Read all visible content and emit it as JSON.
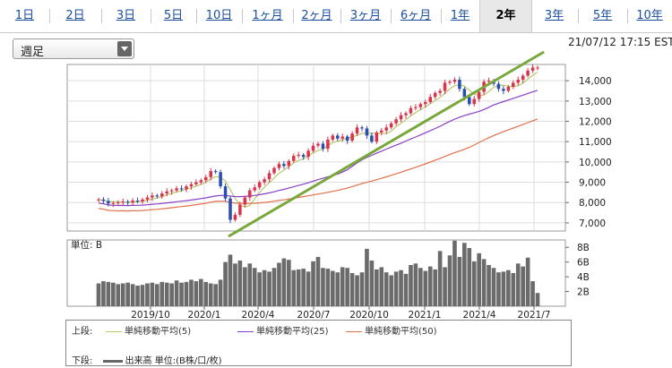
{
  "tabs": [
    {
      "label": "1日",
      "active": false
    },
    {
      "label": "2日",
      "active": false
    },
    {
      "label": "3日",
      "active": false
    },
    {
      "label": "5日",
      "active": false
    },
    {
      "label": "10日",
      "active": false
    },
    {
      "label": "1ヶ月",
      "active": false
    },
    {
      "label": "2ヶ月",
      "active": false
    },
    {
      "label": "3ヶ月",
      "active": false
    },
    {
      "label": "6ヶ月",
      "active": false
    },
    {
      "label": "1年",
      "active": false
    },
    {
      "label": "2年",
      "active": true
    },
    {
      "label": "3年",
      "active": false
    },
    {
      "label": "5年",
      "active": false
    },
    {
      "label": "10年",
      "active": false
    }
  ],
  "period_select": {
    "value": "週足"
  },
  "timestamp": "21/07/12 17:15 EST",
  "volume_panel": {
    "unit_label": "単位: B"
  },
  "legend": {
    "upper_label": "上段:",
    "lower_label": "下段:",
    "upper_items": [
      {
        "name": "単純移動平均(5)",
        "color": "#b5c96a"
      },
      {
        "name": "単純移動平均(25)",
        "color": "#8a3fc6"
      },
      {
        "name": "単純移動平均(50)",
        "color": "#e2704a"
      }
    ],
    "lower_item": {
      "name": "出来高 単位:(B株/口/枚)",
      "color": "#666666"
    }
  },
  "chart_data": {
    "type": "candlestick",
    "x_tick_labels": [
      "2019/10",
      "2020/1",
      "2020/4",
      "2020/7",
      "2020/10",
      "2021/1",
      "2021/4",
      "2021/7"
    ],
    "price_axis": {
      "ticks": [
        "14,000",
        "13,000",
        "12,000",
        "11,000",
        "10,000",
        "9,000",
        "8,000",
        "7,000"
      ],
      "range": [
        6600,
        14800
      ]
    },
    "volume_axis": {
      "ticks": [
        "8B",
        "6B",
        "4B",
        "2B"
      ],
      "range": [
        0,
        9
      ]
    },
    "colors": {
      "up": "#d9354a",
      "down": "#2a4fb0",
      "trendline": "#78a83a",
      "ma5": "#b5c96a",
      "ma25": "#8a3fc6",
      "ma50": "#e2704a",
      "volume": "#6b6b6b"
    },
    "weekly_close": [
      8150,
      8080,
      7950,
      7980,
      8000,
      8050,
      8000,
      8100,
      8050,
      8150,
      8250,
      8350,
      8300,
      8450,
      8550,
      8600,
      8700,
      8650,
      8800,
      8900,
      9000,
      9100,
      9250,
      9550,
      9500,
      8800,
      8200,
      7150,
      7400,
      7900,
      8250,
      8600,
      8750,
      9000,
      9150,
      9450,
      9700,
      9900,
      9800,
      10050,
      10300,
      10350,
      10250,
      10550,
      10800,
      10900,
      10650,
      11100,
      11300,
      11150,
      11250,
      11050,
      11400,
      11700,
      11650,
      11300,
      11000,
      11450,
      11550,
      11700,
      11900,
      12100,
      12300,
      12400,
      12650,
      12700,
      12850,
      12950,
      13200,
      13400,
      13500,
      13900,
      13950,
      14050,
      13600,
      13200,
      12850,
      13100,
      13450,
      13950,
      14000,
      13850,
      13600,
      13500,
      13700,
      13900,
      14050,
      14250,
      14500,
      14650,
      14650
    ],
    "weekly_volume": [
      3.1,
      3.4,
      3.3,
      3.2,
      3.0,
      3.1,
      3.2,
      3.0,
      2.8,
      2.9,
      3.1,
      3.2,
      3.0,
      3.3,
      3.2,
      3.1,
      3.5,
      3.2,
      3.3,
      3.6,
      3.4,
      3.7,
      3.3,
      3.1,
      3.0,
      3.6,
      6.0,
      7.0,
      5.8,
      6.2,
      5.3,
      5.8,
      5.2,
      4.6,
      4.9,
      4.7,
      5.2,
      5.9,
      6.5,
      6.3,
      4.9,
      5.0,
      5.1,
      4.7,
      6.1,
      6.7,
      5.2,
      5.1,
      4.8,
      4.6,
      5.3,
      5.2,
      4.5,
      4.2,
      4.6,
      7.8,
      6.2,
      5.0,
      5.3,
      4.6,
      4.2,
      4.7,
      4.9,
      4.4,
      5.6,
      5.8,
      5.2,
      4.8,
      5.4,
      5.0,
      7.5,
      5.3,
      6.9,
      8.9,
      6.7,
      8.6,
      7.9,
      6.1,
      7.2,
      6.4,
      5.6,
      5.2,
      4.6,
      4.7,
      4.9,
      4.5,
      5.8,
      5.4,
      6.6,
      3.4,
      1.8
    ]
  }
}
